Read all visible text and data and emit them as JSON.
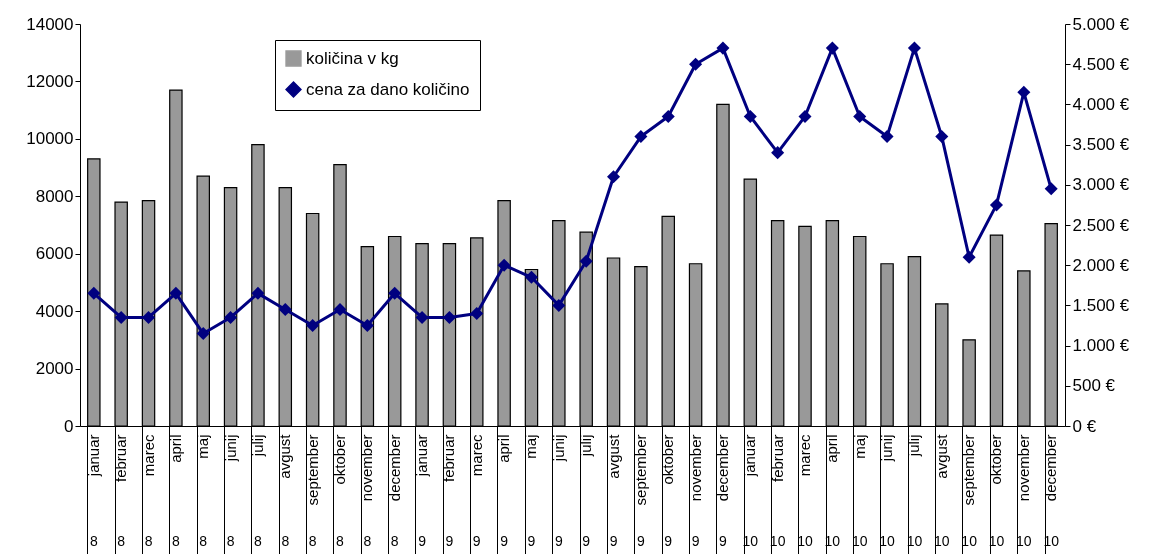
{
  "chart_data": {
    "type": "bar",
    "categories": [
      "januar 8",
      "februar 8",
      "marec 8",
      "april 8",
      "maj 8",
      "junij 8",
      "julij 8",
      "avgust 8",
      "september 8",
      "oktober 8",
      "november 8",
      "december 8",
      "januar 9",
      "februar 9",
      "marec 9",
      "april 9",
      "maj 9",
      "junij 9",
      "julij 9",
      "avgust 9",
      "september 9",
      "oktober 9",
      "november 9",
      "december 9",
      "januar 10",
      "februar 10",
      "marec 10",
      "april 10",
      "maj 10",
      "junij 10",
      "julij 10",
      "avgust 10",
      "september 10",
      "oktober 10",
      "november 10",
      "december 10"
    ],
    "series": [
      {
        "name": "količina v kg",
        "color": "#999999",
        "values": [
          9300,
          7800,
          7850,
          11700,
          8700,
          8300,
          9800,
          8300,
          7400,
          9100,
          6250,
          6600,
          6350,
          6350,
          6550,
          7850,
          5450,
          7150,
          6750,
          5850,
          5550,
          7300,
          5650,
          11200,
          8600,
          7150,
          6950,
          7150,
          6600,
          5650,
          5900,
          4250,
          3000,
          6650,
          5400,
          7050
        ]
      },
      {
        "name": "cena za dano količino",
        "type": "line",
        "axis": "y2",
        "color": "#000080",
        "marker": "diamond",
        "values": [
          1650,
          1350,
          1350,
          1650,
          1150,
          1350,
          1650,
          1450,
          1250,
          1450,
          1250,
          1650,
          1350,
          1350,
          1400,
          2000,
          1850,
          1500,
          2050,
          3100,
          3600,
          3850,
          4500,
          4700,
          3850,
          3400,
          3850,
          4700,
          3850,
          3600,
          4700,
          3600,
          2100,
          2750,
          4150,
          2950
        ]
      }
    ],
    "ylim": [
      0,
      14000
    ],
    "yticks": [
      0,
      2000,
      4000,
      6000,
      8000,
      10000,
      12000,
      14000
    ],
    "y2lim": [
      0,
      5000
    ],
    "y2ticks": [
      {
        "value": 0,
        "label": "0 €"
      },
      {
        "value": 500,
        "label": "500 €"
      },
      {
        "value": 1000,
        "label": "1.000 €"
      },
      {
        "value": 1500,
        "label": "1.500 €"
      },
      {
        "value": 2000,
        "label": "2.000 €"
      },
      {
        "value": 2500,
        "label": "2.500 €"
      },
      {
        "value": 3000,
        "label": "3.000 €"
      },
      {
        "value": 3500,
        "label": "3.500 €"
      },
      {
        "value": 4000,
        "label": "4.000 €"
      },
      {
        "value": 4500,
        "label": "4.500 €"
      },
      {
        "value": 5000,
        "label": "5.000 €"
      }
    ],
    "grid": false,
    "legend": "top"
  }
}
